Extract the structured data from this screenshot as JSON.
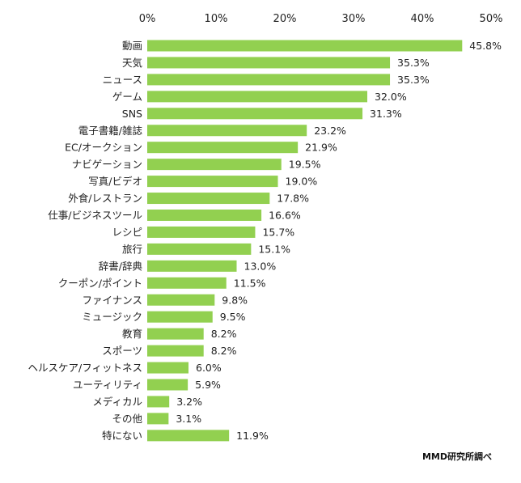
{
  "chart_data": {
    "type": "bar",
    "orientation": "horizontal",
    "xlim": [
      0,
      50
    ],
    "x_ticks": [
      "0%",
      "10%",
      "20%",
      "30%",
      "40%",
      "50%"
    ],
    "grid": false,
    "bar_color": "#92d050",
    "categories": [
      "動画",
      "天気",
      "ニュース",
      "ゲーム",
      "SNS",
      "電子書籍/雑誌",
      "EC/オークション",
      "ナビゲーション",
      "写真/ビデオ",
      "外食/レストラン",
      "仕事/ビジネスツール",
      "レシピ",
      "旅行",
      "辞書/辞典",
      "クーポン/ポイント",
      "ファイナンス",
      "ミュージック",
      "教育",
      "スポーツ",
      "ヘルスケア/フィットネス",
      "ユーティリティ",
      "メディカル",
      "その他",
      "特にない"
    ],
    "values": [
      45.8,
      35.3,
      35.3,
      32.0,
      31.3,
      23.2,
      21.9,
      19.5,
      19.0,
      17.8,
      16.6,
      15.7,
      15.1,
      13.0,
      11.5,
      9.8,
      9.5,
      8.2,
      8.2,
      6.0,
      5.9,
      3.2,
      3.1,
      11.9
    ],
    "value_labels": [
      "45.8%",
      "35.3%",
      "35.3%",
      "32.0%",
      "31.3%",
      "23.2%",
      "21.9%",
      "19.5%",
      "19.0%",
      "17.8%",
      "16.6%",
      "15.7%",
      "15.1%",
      "13.0%",
      "11.5%",
      "9.8%",
      "9.5%",
      "8.2%",
      "8.2%",
      "6.0%",
      "5.9%",
      "3.2%",
      "3.1%",
      "11.9%"
    ],
    "source": "MMD研究所調べ"
  }
}
